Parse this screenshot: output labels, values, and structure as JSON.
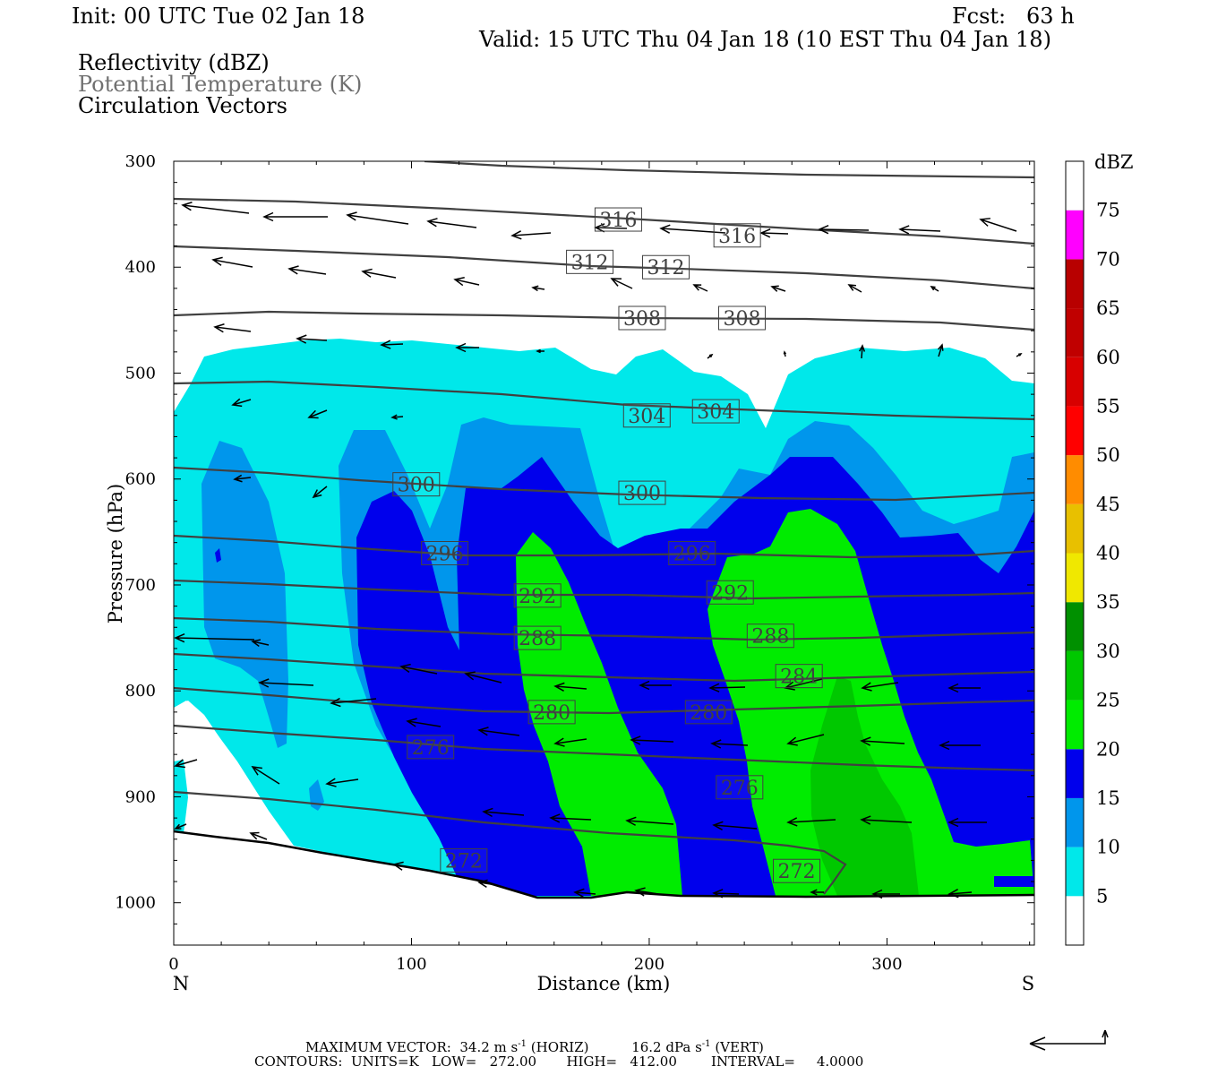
{
  "header": {
    "init": "Init: 00 UTC Tue 02 Jan 18",
    "fcst": "Fcst:   63 h",
    "valid": "Valid: 15 UTC Thu 04 Jan 18 (10 EST Thu 04 Jan 18)"
  },
  "fields": [
    "Reflectivity (dBZ)",
    "Potential Temperature (K)",
    "Circulation Vectors"
  ],
  "footer": {
    "max_vector_prefix": "MAXIMUM VECTOR:  34.2 m s",
    "max_vector_horiz": "(HORIZ)",
    "max_vector_vert_prefix": "16.2 dPa s",
    "max_vector_vert": "(VERT)",
    "exponent": "-1",
    "contours": "CONTOURS:  UNITS=K   LOW=   272.00       HIGH=   412.00        INTERVAL=     4.0000"
  },
  "colors": {
    "c5": "#00e8ea",
    "c10": "#0096ec",
    "c15": "#0000ec",
    "c20": "#00ec00",
    "c25": "#00c800",
    "c30": "#009000",
    "c35": "#f0e800",
    "c40": "#e8c000",
    "c45": "#ff8c00",
    "c50": "#ff0000",
    "c55": "#d80000",
    "c60": "#c00000",
    "c65": "#b80000",
    "c70": "#ff00ff",
    "c75": "#9858c8",
    "theta": "#404040",
    "vector": "#000000"
  },
  "chart_data": {
    "type": "cross-section",
    "xlabel": "Distance (km)",
    "ylabel": "Pressure (hPa)",
    "xlim": [
      0,
      362
    ],
    "ylim": [
      1040,
      300
    ],
    "x_ticks": [
      0,
      100,
      200,
      300
    ],
    "y_ticks": [
      300,
      400,
      500,
      600,
      700,
      800,
      900,
      1000
    ],
    "left_end_label": "N",
    "right_end_label": "S",
    "colorbar": {
      "unit": "dBZ",
      "levels": [
        5,
        10,
        15,
        20,
        25,
        30,
        35,
        40,
        45,
        50,
        55,
        60,
        65,
        70,
        75
      ],
      "colors": [
        "#00e8ea",
        "#0096ec",
        "#0000ec",
        "#00ec00",
        "#00c800",
        "#009000",
        "#f0e800",
        "#e8c000",
        "#ff8c00",
        "#ff0000",
        "#d80000",
        "#c00000",
        "#b80000",
        "#ff00ff",
        "#9858c8"
      ]
    },
    "theta_labels": [
      {
        "value": "316",
        "x": 187,
        "p": 355
      },
      {
        "value": "316",
        "x": 237,
        "p": 370
      },
      {
        "value": "312",
        "x": 175,
        "p": 395
      },
      {
        "value": "312",
        "x": 207,
        "p": 400
      },
      {
        "value": "308",
        "x": 197,
        "p": 448
      },
      {
        "value": "308",
        "x": 239,
        "p": 448
      },
      {
        "value": "304",
        "x": 199,
        "p": 540
      },
      {
        "value": "304",
        "x": 228,
        "p": 536
      },
      {
        "value": "300",
        "x": 102,
        "p": 605
      },
      {
        "value": "300",
        "x": 197,
        "p": 613
      },
      {
        "value": "296",
        "x": 114,
        "p": 670
      },
      {
        "value": "296",
        "x": 218,
        "p": 670
      },
      {
        "value": "292",
        "x": 153,
        "p": 710
      },
      {
        "value": "292",
        "x": 234,
        "p": 707
      },
      {
        "value": "288",
        "x": 153,
        "p": 750
      },
      {
        "value": "288",
        "x": 251,
        "p": 748
      },
      {
        "value": "284",
        "x": 263,
        "p": 786
      },
      {
        "value": "280",
        "x": 159,
        "p": 820
      },
      {
        "value": "280",
        "x": 225,
        "p": 820
      },
      {
        "value": "276",
        "x": 108,
        "p": 853
      },
      {
        "value": "276",
        "x": 238,
        "p": 891
      },
      {
        "value": "272",
        "x": 122,
        "p": 960
      },
      {
        "value": "272",
        "x": 262,
        "p": 970
      }
    ]
  }
}
